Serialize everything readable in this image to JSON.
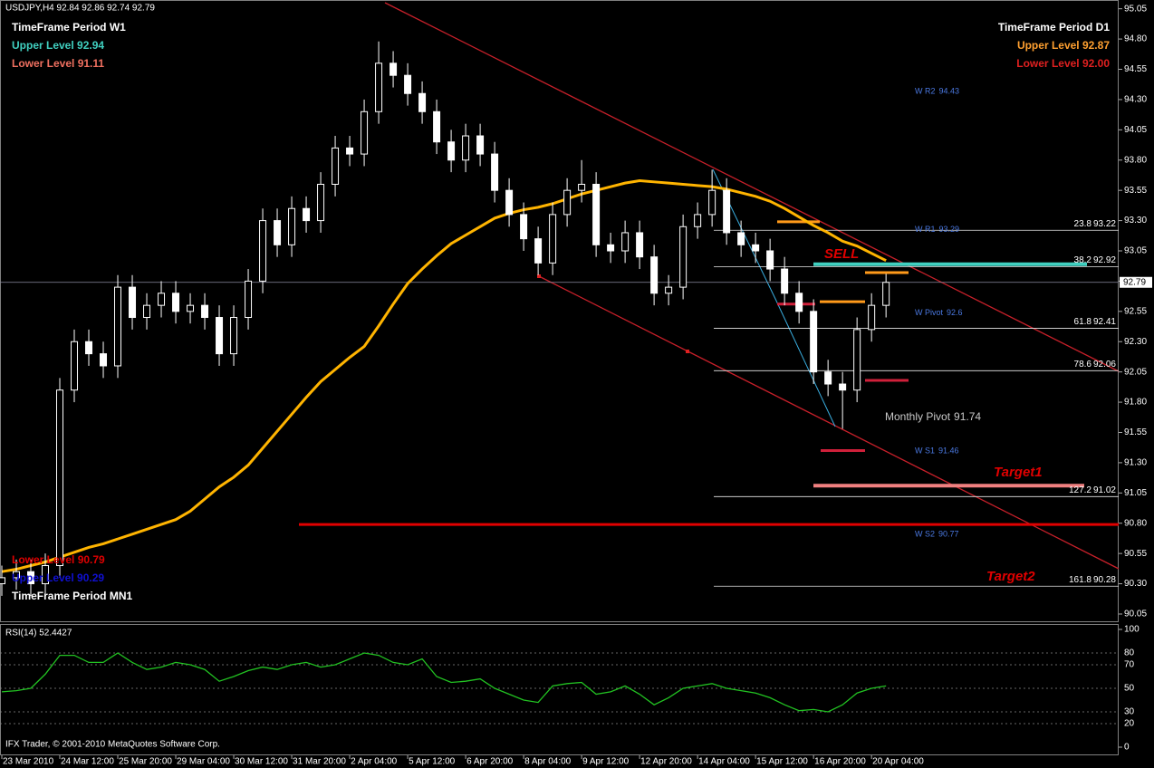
{
  "chart_data": [
    {
      "type": "candlestick",
      "title": "USDJPY,H4  92.84 92.86 92.74 92.79",
      "x": [
        0,
        2,
        4,
        6,
        8,
        10,
        12,
        14,
        16,
        18,
        20,
        22,
        24,
        26,
        28,
        30,
        32,
        34,
        36,
        38,
        40,
        42,
        44,
        46,
        48,
        50,
        52,
        54,
        56,
        58,
        60,
        62,
        64,
        66,
        68,
        70,
        72,
        74,
        76,
        78,
        80,
        82,
        84,
        86,
        88,
        90,
        92,
        94,
        96,
        98,
        100,
        102,
        104,
        106,
        108,
        110,
        112,
        114,
        116,
        118,
        120,
        122
      ],
      "open": [
        90.3,
        90.35,
        90.4,
        90.3,
        90.45,
        91.9,
        92.3,
        92.2,
        92.1,
        92.75,
        92.5,
        92.6,
        92.7,
        92.55,
        92.6,
        92.5,
        92.2,
        92.5,
        92.8,
        93.3,
        93.1,
        93.4,
        93.3,
        93.6,
        93.9,
        93.85,
        94.2,
        94.6,
        94.5,
        94.35,
        94.2,
        93.95,
        93.8,
        94.0,
        93.85,
        93.55,
        93.35,
        93.15,
        92.95,
        93.35,
        93.55,
        93.6,
        93.1,
        93.05,
        93.2,
        93.0,
        92.7,
        92.75,
        93.25,
        93.35,
        93.55,
        93.2,
        93.1,
        93.05,
        92.9,
        92.7,
        92.55,
        92.05,
        91.95,
        91.9,
        92.4,
        92.6
      ],
      "high": [
        90.45,
        90.5,
        90.5,
        90.55,
        92.0,
        92.4,
        92.4,
        92.3,
        92.85,
        92.85,
        92.7,
        92.8,
        92.8,
        92.7,
        92.7,
        92.6,
        92.6,
        92.9,
        93.4,
        93.4,
        93.5,
        93.5,
        93.7,
        94.0,
        94.0,
        94.3,
        94.78,
        94.7,
        94.6,
        94.45,
        94.3,
        94.05,
        94.1,
        94.1,
        93.95,
        93.65,
        93.45,
        93.25,
        93.45,
        93.65,
        93.8,
        93.7,
        93.2,
        93.3,
        93.3,
        93.1,
        92.85,
        93.35,
        93.45,
        93.72,
        93.65,
        93.3,
        93.2,
        93.15,
        93.0,
        92.8,
        92.65,
        92.15,
        92.05,
        92.5,
        92.7,
        92.86
      ],
      "low": [
        90.2,
        90.25,
        90.2,
        90.2,
        90.35,
        91.8,
        92.1,
        92.0,
        92.0,
        92.4,
        92.4,
        92.5,
        92.45,
        92.45,
        92.4,
        92.1,
        92.1,
        92.4,
        92.7,
        93.0,
        93.0,
        93.2,
        93.2,
        93.5,
        93.75,
        93.75,
        94.1,
        94.4,
        94.25,
        94.1,
        93.85,
        93.7,
        93.7,
        93.75,
        93.45,
        93.25,
        93.05,
        92.85,
        92.85,
        93.25,
        93.45,
        93.0,
        92.95,
        92.95,
        92.9,
        92.6,
        92.6,
        92.65,
        93.15,
        93.25,
        93.1,
        93.0,
        92.95,
        92.8,
        92.6,
        92.45,
        91.95,
        91.85,
        91.58,
        91.8,
        92.3,
        92.5
      ],
      "close": [
        90.35,
        90.4,
        90.3,
        90.45,
        91.9,
        92.3,
        92.2,
        92.1,
        92.75,
        92.5,
        92.6,
        92.7,
        92.55,
        92.6,
        92.5,
        92.2,
        92.5,
        92.8,
        93.3,
        93.1,
        93.4,
        93.3,
        93.6,
        93.9,
        93.85,
        94.2,
        94.6,
        94.5,
        94.35,
        94.2,
        93.95,
        93.8,
        94.0,
        93.85,
        93.55,
        93.35,
        93.15,
        92.95,
        93.35,
        93.55,
        93.6,
        93.1,
        93.05,
        93.2,
        93.0,
        92.7,
        92.75,
        93.25,
        93.35,
        93.55,
        93.2,
        93.1,
        93.05,
        92.9,
        92.7,
        92.55,
        92.05,
        91.95,
        91.9,
        92.4,
        92.6,
        92.79
      ],
      "up_color": "#000000",
      "down_color": "#ffffff",
      "wick_color": "#ffffff",
      "ma": {
        "color": "#ffb400",
        "values": [
          90.4,
          90.42,
          90.45,
          90.48,
          90.52,
          90.56,
          90.6,
          90.63,
          90.67,
          90.71,
          90.75,
          90.79,
          90.83,
          90.9,
          91.0,
          91.1,
          91.18,
          91.28,
          91.42,
          91.56,
          91.7,
          91.84,
          91.97,
          92.07,
          92.17,
          92.26,
          92.43,
          92.61,
          92.78,
          92.9,
          93.01,
          93.11,
          93.18,
          93.25,
          93.32,
          93.36,
          93.39,
          93.41,
          93.44,
          93.48,
          93.52,
          93.55,
          93.58,
          93.61,
          93.63,
          93.62,
          93.61,
          93.6,
          93.59,
          93.58,
          93.56,
          93.53,
          93.5,
          93.46,
          93.4,
          93.33,
          93.26,
          93.2,
          93.13,
          93.09,
          93.03,
          92.97
        ]
      },
      "ylim": [
        89.99,
        95.1
      ],
      "yticks": [
        90.05,
        {
          "value": 90.3,
          "label": "90.30"
        },
        90.55,
        {
          "value": 90.8,
          "label": "90.80"
        },
        91.05,
        {
          "value": 91.3,
          "label": "91.30"
        },
        91.55,
        {
          "value": 91.8,
          "label": "91.80"
        },
        92.05,
        {
          "value": 92.3,
          "label": "92.30"
        },
        92.55,
        {
          "value": 92.8,
          "label": "92.80"
        },
        93.05,
        {
          "value": 93.3,
          "label": "93.30"
        },
        93.55,
        {
          "value": 93.8,
          "label": "93.80"
        },
        94.05,
        {
          "value": 94.3,
          "label": "94.30"
        },
        94.55,
        {
          "value": 94.8,
          "label": "94.80"
        },
        95.05
      ],
      "xlim": [
        -0.25,
        154.1
      ],
      "xticks": [
        {
          "value": 0,
          "label": "23 Mar 2010"
        },
        {
          "value": 8,
          "label": "24 Mar 12:00"
        },
        {
          "value": 16,
          "label": "25 Mar 20:00"
        },
        {
          "value": 24,
          "label": "29 Mar 04:00"
        },
        {
          "value": 32,
          "label": "30 Mar 12:00"
        },
        {
          "value": 40,
          "label": "31 Mar 20:00"
        },
        {
          "value": 48,
          "label": "2 Apr 04:00"
        },
        {
          "value": 56,
          "label": "5 Apr 12:00"
        },
        {
          "value": 64,
          "label": "6 Apr 20:00"
        },
        {
          "value": 72,
          "label": "8 Apr 04:00"
        },
        {
          "value": 80,
          "label": "9 Apr 12:00"
        },
        {
          "value": 88,
          "label": "12 Apr 20:00"
        },
        {
          "value": 96,
          "label": "14 Apr 04:00"
        },
        {
          "value": 104,
          "label": "15 Apr 12:00"
        },
        {
          "value": 112,
          "label": "16 Apr 20:00"
        },
        {
          "value": 120,
          "label": "20 Apr 04:00"
        }
      ],
      "current_price": 92.79,
      "fib_levels": [
        {
          "ratio": "23.8",
          "value": 93.22
        },
        {
          "ratio": "38.2",
          "value": 92.92
        },
        {
          "ratio": "61.8",
          "value": 92.41
        },
        {
          "ratio": "78.6",
          "value": 92.06
        },
        {
          "ratio": "127.2",
          "value": 91.02
        },
        {
          "ratio": "161.8",
          "value": 90.28
        }
      ],
      "pivots": [
        {
          "name": "W R2",
          "value": 94.43,
          "color": "#4a78e0"
        },
        {
          "name": "W R1",
          "value": 93.29,
          "color": "#4a78e0"
        },
        {
          "name": "W Pivot",
          "value": 92.6,
          "color": "#4a78e0"
        },
        {
          "name": "W S1",
          "value": 91.46,
          "color": "#4a78e0"
        },
        {
          "name": "W S2",
          "value": 90.77,
          "color": "#4a78e0"
        },
        {
          "name": "Monthly Pivot",
          "value": 91.74,
          "color": "#c8c8c8"
        }
      ],
      "levels": [
        {
          "value": 90.79,
          "color": "#e00000"
        },
        {
          "value": 92.94,
          "color": "#40d0c0"
        },
        {
          "value": 91.11,
          "color": "#f08080"
        },
        {
          "value": 93.29,
          "color": "#ff9a1a"
        },
        {
          "value": 92.63,
          "color": "#ff9a1a"
        },
        {
          "value": 92.87,
          "color": "#ff9a1a"
        },
        {
          "value": 92.61,
          "color": "#d0203a"
        },
        {
          "value": 91.98,
          "color": "#d0203a"
        },
        {
          "value": 91.4,
          "color": "#d0203a"
        }
      ],
      "annotations": [
        "SELL",
        "Target1",
        "Target2"
      ],
      "info_w1": [
        "TimeFrame Period W1",
        "Upper Level 92.94",
        "Lower Level 91.11"
      ],
      "info_d1": [
        "TimeFrame Period D1",
        "Upper Level 92.87",
        "Lower Level 92.00"
      ],
      "info_mn1": [
        "Lower Level 90.79",
        "Upper Level 90.29",
        "TimeFrame Period MN1"
      ]
    },
    {
      "type": "line",
      "title": "RSI(14) 52.4427",
      "color": "#22c322",
      "values": [
        47,
        48,
        50,
        62,
        78,
        78,
        72,
        72,
        80,
        72,
        66,
        68,
        72,
        70,
        66,
        56,
        60,
        65,
        68,
        66,
        70,
        72,
        68,
        70,
        75,
        80,
        78,
        72,
        70,
        75,
        60,
        55,
        56,
        58,
        50,
        45,
        40,
        38,
        52,
        54,
        55,
        45,
        47,
        52,
        45,
        36,
        42,
        50,
        52,
        54,
        50,
        48,
        46,
        42,
        36,
        31,
        32,
        30,
        36,
        46,
        50,
        52
      ],
      "ylim": [
        0,
        100
      ],
      "yticks": [
        0,
        20,
        30,
        50,
        70,
        80,
        100
      ],
      "footer": "IFX Trader, © 2001-2010 MetaQuotes Software Corp."
    }
  ]
}
